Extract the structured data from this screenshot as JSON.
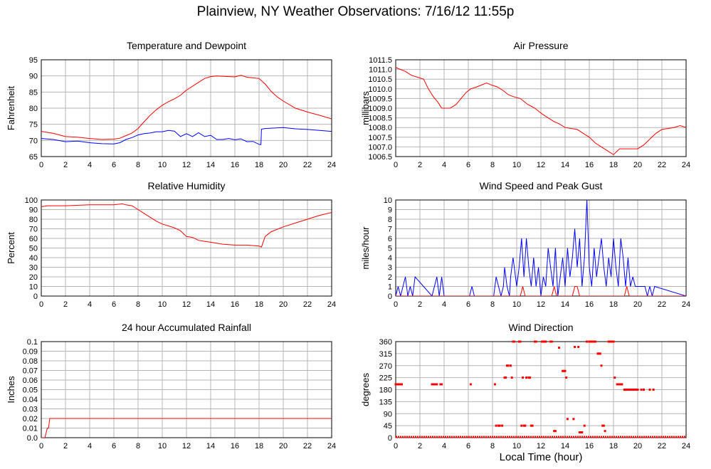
{
  "title": "Plainview, NY Weather Observations: 7/16/12 11:55p",
  "xlabel": "Local Time (hour)",
  "colors": {
    "red": "#ff0000",
    "blue": "#0000ff",
    "grid": "#b4b4b4",
    "axis": "#000000"
  },
  "chart_data": [
    {
      "type": "line",
      "title": "Temperature and Dewpoint",
      "xlabel": "",
      "ylabel": "Fahrenheit",
      "xlim": [
        0,
        24
      ],
      "ylim": [
        65,
        95
      ],
      "xticks": [
        "0",
        "2",
        "4",
        "6",
        "8",
        "10",
        "12",
        "14",
        "16",
        "18",
        "20",
        "22",
        "24"
      ],
      "yticks": [
        "65",
        "70",
        "75",
        "80",
        "85",
        "90",
        "95"
      ],
      "grid": true,
      "series": [
        {
          "color": "#ff0000",
          "x": [
            0,
            1,
            2,
            3,
            4,
            5,
            6,
            6.5,
            7,
            7.5,
            8,
            8.5,
            9,
            9.5,
            10,
            10.5,
            11,
            11.5,
            12,
            12.5,
            13,
            13.5,
            14,
            14.5,
            15,
            15.5,
            16,
            16.5,
            17,
            17.5,
            18,
            18.5,
            19,
            19.5,
            20,
            21,
            22,
            23,
            24
          ],
          "y": [
            72.8,
            72.2,
            71.2,
            71,
            70.6,
            70.3,
            70.4,
            70.7,
            71.5,
            72.3,
            73.7,
            75.8,
            77.8,
            79.5,
            80.9,
            82,
            82.9,
            84,
            85.6,
            86.8,
            88,
            89.2,
            89.8,
            90,
            89.9,
            89.8,
            89.7,
            90.2,
            89.6,
            89.4,
            89.2,
            87.5,
            85.2,
            83.5,
            82.2,
            80,
            78.8,
            77.8,
            76.7
          ]
        },
        {
          "color": "#0000ff",
          "x": [
            0,
            1,
            2,
            3,
            4,
            5,
            6,
            6.5,
            7,
            7.5,
            8,
            8.5,
            9,
            9.5,
            10,
            10.5,
            11,
            11.5,
            12,
            12.5,
            13,
            13.5,
            14,
            14.5,
            15,
            15.5,
            16,
            16.5,
            17,
            17.5,
            18,
            18.15,
            18.2,
            18.5,
            19,
            20,
            21,
            22,
            23,
            24
          ],
          "y": [
            70.6,
            70.3,
            69.6,
            69.8,
            69.3,
            69,
            68.9,
            69.3,
            70.3,
            70.9,
            71.7,
            72.1,
            72.3,
            72.7,
            72.7,
            73.1,
            72.9,
            71.2,
            72.1,
            71.2,
            72.4,
            71.2,
            71.6,
            70.3,
            70.3,
            70.6,
            70.2,
            70.5,
            69.6,
            69.7,
            68.8,
            68.7,
            73.5,
            73.7,
            73.8,
            74,
            73.6,
            73.4,
            73.1,
            72.8
          ]
        }
      ]
    },
    {
      "type": "line",
      "title": "Air Pressure",
      "xlabel": "",
      "ylabel": "millibars",
      "xlim": [
        0,
        24
      ],
      "ylim": [
        1006.5,
        1011.5
      ],
      "xticks": [
        "0",
        "2",
        "4",
        "6",
        "8",
        "10",
        "12",
        "14",
        "16",
        "18",
        "20",
        "22",
        "24"
      ],
      "yticks": [
        "1006.5",
        "1007.0",
        "1007.5",
        "1008.0",
        "1008.5",
        "1009.0",
        "1009.5",
        "1010.0",
        "1010.5",
        "1011.0",
        "1011.5"
      ],
      "grid": true,
      "series": [
        {
          "color": "#ff0000",
          "x": [
            0,
            0.4,
            0.8,
            1.3,
            1.8,
            2.3,
            2.7,
            3.1,
            3.5,
            3.8,
            4.5,
            5,
            5.4,
            5.8,
            6.2,
            6.7,
            7.1,
            7.5,
            7.9,
            8.4,
            8.9,
            9.3,
            9.7,
            10.3,
            10.9,
            11.5,
            12.1,
            12.6,
            13.1,
            13.5,
            14,
            15,
            15.5,
            16,
            16.5,
            17,
            17.5,
            18,
            18.5,
            19,
            20,
            20.5,
            21,
            21.5,
            22,
            23,
            23.5,
            24
          ],
          "y": [
            1011.1,
            1011,
            1010.9,
            1010.7,
            1010.6,
            1010.5,
            1010,
            1009.6,
            1009.3,
            1009,
            1009,
            1009.2,
            1009.5,
            1009.8,
            1010,
            1010.1,
            1010.2,
            1010.3,
            1010.2,
            1010.1,
            1009.9,
            1009.7,
            1009.6,
            1009.5,
            1009.2,
            1009,
            1008.7,
            1008.5,
            1008.3,
            1008.2,
            1008,
            1007.9,
            1007.7,
            1007.5,
            1007.2,
            1007,
            1006.8,
            1006.6,
            1006.9,
            1006.9,
            1006.9,
            1007.1,
            1007.4,
            1007.7,
            1007.9,
            1008,
            1008.1,
            1008
          ]
        }
      ]
    },
    {
      "type": "line",
      "title": "Relative Humidity",
      "xlabel": "",
      "ylabel": "Percent",
      "xlim": [
        0,
        24
      ],
      "ylim": [
        0,
        100
      ],
      "xticks": [
        "0",
        "2",
        "4",
        "6",
        "8",
        "10",
        "12",
        "14",
        "16",
        "18",
        "20",
        "22",
        "24"
      ],
      "yticks": [
        "0",
        "10",
        "20",
        "30",
        "40",
        "50",
        "60",
        "70",
        "80",
        "90",
        "100"
      ],
      "grid": true,
      "series": [
        {
          "color": "#ff0000",
          "x": [
            0,
            0.5,
            2,
            4,
            6,
            6.7,
            7,
            7.5,
            8,
            8.5,
            9,
            9.5,
            10,
            10.5,
            11,
            11.5,
            12,
            12.5,
            13,
            13.5,
            14,
            14.5,
            15,
            16,
            17,
            18,
            18.2,
            18.5,
            19,
            20,
            21,
            22,
            23,
            24
          ],
          "y": [
            93,
            94,
            94,
            95,
            95,
            96,
            95,
            94,
            90,
            86,
            82,
            78,
            75,
            73,
            71,
            68,
            62,
            61,
            58,
            57,
            56,
            55,
            54,
            53,
            53,
            52,
            51,
            62,
            67,
            72,
            76,
            80,
            84,
            87
          ]
        }
      ]
    },
    {
      "type": "line",
      "title": "Wind Speed and Peak Gust",
      "xlabel": "",
      "ylabel": "miles/hour",
      "xlim": [
        0,
        24
      ],
      "ylim": [
        0,
        10
      ],
      "xticks": [
        "0",
        "2",
        "4",
        "6",
        "8",
        "10",
        "12",
        "14",
        "16",
        "18",
        "20",
        "22",
        "24"
      ],
      "yticks": [
        "0",
        "1",
        "2",
        "3",
        "4",
        "5",
        "6",
        "7",
        "8",
        "9",
        "10"
      ],
      "grid": true,
      "series": [
        {
          "color": "#0000ff",
          "x": [
            0,
            0.2,
            0.4,
            0.6,
            0.8,
            1,
            1.2,
            1.4,
            1.6,
            3,
            3.2,
            3.4,
            3.6,
            3.8,
            4,
            6.1,
            6.3,
            6.5,
            8.1,
            8.3,
            8.5,
            8.7,
            8.9,
            9,
            9.2,
            9.4,
            9.5,
            9.7,
            9.9,
            10,
            10.2,
            10.4,
            10.6,
            10.8,
            11,
            11.2,
            11.4,
            11.6,
            11.8,
            12,
            12.2,
            12.4,
            12.6,
            12.8,
            13,
            13.2,
            13.4,
            13.6,
            13.8,
            14,
            14.2,
            14.4,
            14.6,
            14.8,
            15,
            15.2,
            15.4,
            15.6,
            15.8,
            16,
            16.2,
            16.4,
            16.6,
            16.8,
            17,
            17.2,
            17.4,
            17.6,
            17.8,
            18,
            18.2,
            18.4,
            18.6,
            18.8,
            19,
            19.2,
            19.4,
            19.6,
            19.8,
            20,
            20.2,
            20.4,
            20.6,
            20.8,
            21,
            21.2,
            21.4,
            24
          ],
          "y": [
            0,
            1,
            0,
            1,
            2,
            0,
            1,
            0,
            2,
            0,
            1,
            2,
            0,
            2,
            0,
            0,
            1,
            0,
            0,
            2,
            1,
            0,
            1,
            3,
            1,
            0,
            2,
            4,
            2,
            1,
            3,
            6,
            2,
            6,
            3,
            1,
            4,
            1,
            3,
            0,
            2,
            1,
            5,
            3,
            1,
            5,
            0,
            2,
            4,
            1,
            5,
            2,
            4,
            7,
            3,
            6,
            1,
            4,
            10,
            3,
            1,
            5,
            2,
            4,
            6,
            3,
            1,
            4,
            2,
            6,
            3,
            1,
            6,
            4,
            1,
            4,
            1,
            2,
            1,
            1,
            1,
            1,
            1,
            0,
            1,
            0,
            1,
            0
          ]
        },
        {
          "color": "#ff0000",
          "x": [
            0,
            10.3,
            10.5,
            10.7,
            12.9,
            13.1,
            13.3,
            14.6,
            14.8,
            15,
            15.2,
            18.9,
            19.1,
            19.3,
            24
          ],
          "y": [
            0,
            0,
            1,
            0,
            0,
            1,
            0,
            0,
            1,
            1,
            0,
            0,
            1,
            0,
            0
          ]
        }
      ]
    },
    {
      "type": "line",
      "title": "24 hour Accumulated Rainfall",
      "xlabel": "",
      "ylabel": "Inches",
      "xlim": [
        0,
        24
      ],
      "ylim": [
        0,
        0.1
      ],
      "xticks": [
        "0",
        "2",
        "4",
        "6",
        "8",
        "10",
        "12",
        "14",
        "16",
        "18",
        "20",
        "22",
        "24"
      ],
      "yticks": [
        "0.0",
        "0.01",
        "0.02",
        "0.03",
        "0.04",
        "0.05",
        "0.06",
        "0.07",
        "0.08",
        "0.09",
        "0.1"
      ],
      "grid": true,
      "series": [
        {
          "color": "#ff0000",
          "x": [
            0,
            0.3,
            0.5,
            0.6,
            0.7,
            24
          ],
          "y": [
            0,
            0,
            0.01,
            0.01,
            0.02,
            0.02
          ]
        }
      ]
    },
    {
      "type": "scatter",
      "title": "Wind Direction",
      "xlabel": "",
      "ylabel": "degrees",
      "xlim": [
        0,
        24
      ],
      "ylim": [
        0,
        360
      ],
      "xticks": [
        "0",
        "2",
        "4",
        "6",
        "8",
        "10",
        "12",
        "14",
        "16",
        "18",
        "20",
        "22",
        "24"
      ],
      "yticks": [
        "0",
        "45",
        "90",
        "135",
        "180",
        "225",
        "270",
        "315",
        "360"
      ],
      "grid": true,
      "series": [
        {
          "color": "#ff0000",
          "x": [
            0,
            0.1,
            0.2,
            0.3,
            0.4,
            0.5,
            3,
            3.1,
            3.2,
            3.3,
            3.4,
            3.7,
            3.8,
            6.2,
            8.2,
            8.3,
            8.5,
            8.6,
            8.8,
            9,
            9.1,
            9.2,
            9.3,
            9.5,
            9.6,
            9.7,
            9.8,
            10.2,
            10.3,
            10.4,
            10.5,
            10.6,
            10.7,
            10.8,
            11,
            11.1,
            11.2,
            11.3,
            11.5,
            11.6,
            12.1,
            12.2,
            12.3,
            12.4,
            12.8,
            12.9,
            13.1,
            13.2,
            13.5,
            13.8,
            13.9,
            14,
            14.1,
            14.2,
            14.7,
            14.8,
            15.1,
            15.2,
            15.3,
            15.4,
            15.6,
            15.8,
            16,
            16.1,
            16.2,
            16.3,
            16.4,
            16.5,
            16.7,
            16.8,
            16.9,
            17,
            17.1,
            17.2,
            17.3,
            17.6,
            17.7,
            17.8,
            17.9,
            18,
            18.1,
            18.3,
            18.4,
            18.5,
            18.6,
            18.7,
            18.9,
            19,
            19.1,
            19.2,
            19.3,
            19.4,
            19.5,
            19.6,
            19.7,
            19.8,
            19.9,
            20,
            20.3,
            20.5,
            21,
            21.3
          ],
          "y": [
            200,
            200,
            200,
            200,
            200,
            200,
            200,
            200,
            200,
            200,
            200,
            200,
            200,
            200,
            200,
            45,
            45,
            45,
            45,
            225,
            225,
            270,
            270,
            270,
            225,
            360,
            360,
            360,
            360,
            45,
            225,
            45,
            45,
            225,
            225,
            225,
            45,
            45,
            360,
            360,
            360,
            360,
            360,
            360,
            360,
            360,
            25,
            25,
            337,
            250,
            250,
            250,
            225,
            70,
            70,
            340,
            340,
            20,
            20,
            20,
            45,
            360,
            360,
            360,
            360,
            360,
            360,
            360,
            315,
            315,
            315,
            270,
            45,
            45,
            25,
            360,
            360,
            360,
            360,
            360,
            225,
            200,
            200,
            200,
            200,
            200,
            180,
            180,
            180,
            180,
            180,
            180,
            180,
            180,
            180,
            180,
            180,
            180,
            180,
            180,
            180,
            180
          ]
        },
        {
          "color": "#ff0000",
          "baseline": true,
          "x": [
            0,
            1,
            2,
            3,
            4,
            5,
            6,
            7,
            8,
            8.5,
            9,
            9.5,
            10,
            11,
            12,
            13,
            14,
            15,
            16,
            17,
            18,
            19,
            20,
            21,
            22,
            23,
            24
          ],
          "y": [
            0,
            0,
            0,
            0,
            0,
            0,
            0,
            0,
            0,
            0,
            0,
            0,
            0,
            0,
            0,
            0,
            0,
            0,
            0,
            0,
            0,
            0,
            0,
            0,
            0,
            0,
            0
          ]
        }
      ]
    }
  ]
}
